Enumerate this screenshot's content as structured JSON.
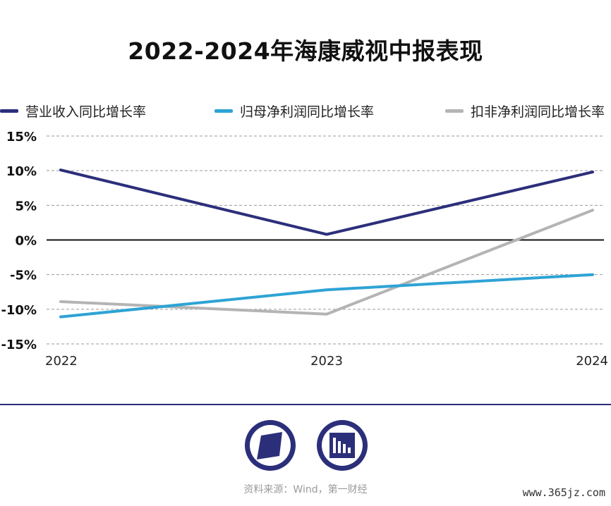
{
  "chart_data": {
    "type": "line",
    "title": "2022-2024年海康威视中报表现",
    "categories": [
      "2022",
      "2023",
      "2024"
    ],
    "series": [
      {
        "name": "营业收入同比增长率",
        "values": [
          10.1,
          0.8,
          9.8
        ],
        "color": "#2b2f7a"
      },
      {
        "name": "归母净利润同比增长率",
        "values": [
          -11.1,
          -7.2,
          -5.0
        ],
        "color": "#2ea3d5"
      },
      {
        "name": "扣非净利润同比增长率",
        "values": [
          -8.9,
          -10.7,
          4.3
        ],
        "color": "#b4b4b4"
      }
    ],
    "ylim": [
      -15,
      15
    ],
    "yticks": [
      15,
      10,
      5,
      0,
      -5,
      -10,
      -15
    ],
    "ytick_labels": [
      "15%",
      "10%",
      "5%",
      "0%",
      "-5%",
      "-10%",
      "-15%"
    ],
    "grid": true,
    "legend_position": "top"
  },
  "footer": {
    "source": "资料来源：Wind，第一财经",
    "watermark": "www.365jz.com",
    "logo_left_icon": "diamond-logo",
    "logo_right_icon": "bar-chart-logo",
    "logo_color": "#2b2f7a"
  }
}
